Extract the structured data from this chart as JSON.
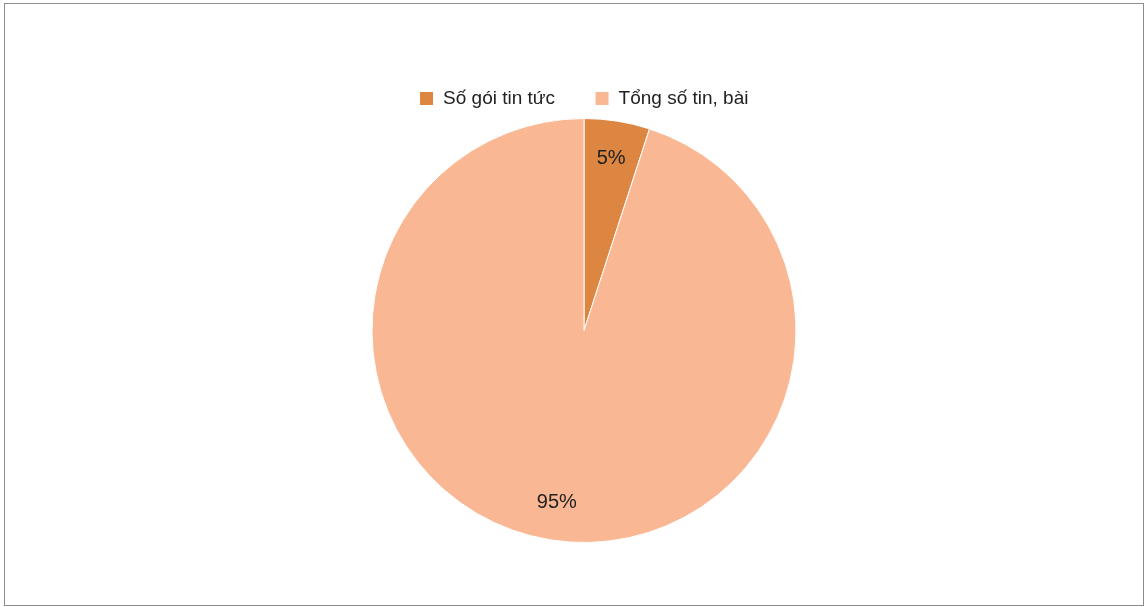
{
  "chart_data": {
    "type": "pie",
    "categories": [
      "Số gói tin tức",
      "Tổng số tin, bài"
    ],
    "values": [
      5,
      95
    ],
    "colors": [
      "#dd8642",
      "#f9b793"
    ],
    "data_labels": true,
    "value_labels": [
      "5%",
      "95%"
    ],
    "legend": "top"
  }
}
